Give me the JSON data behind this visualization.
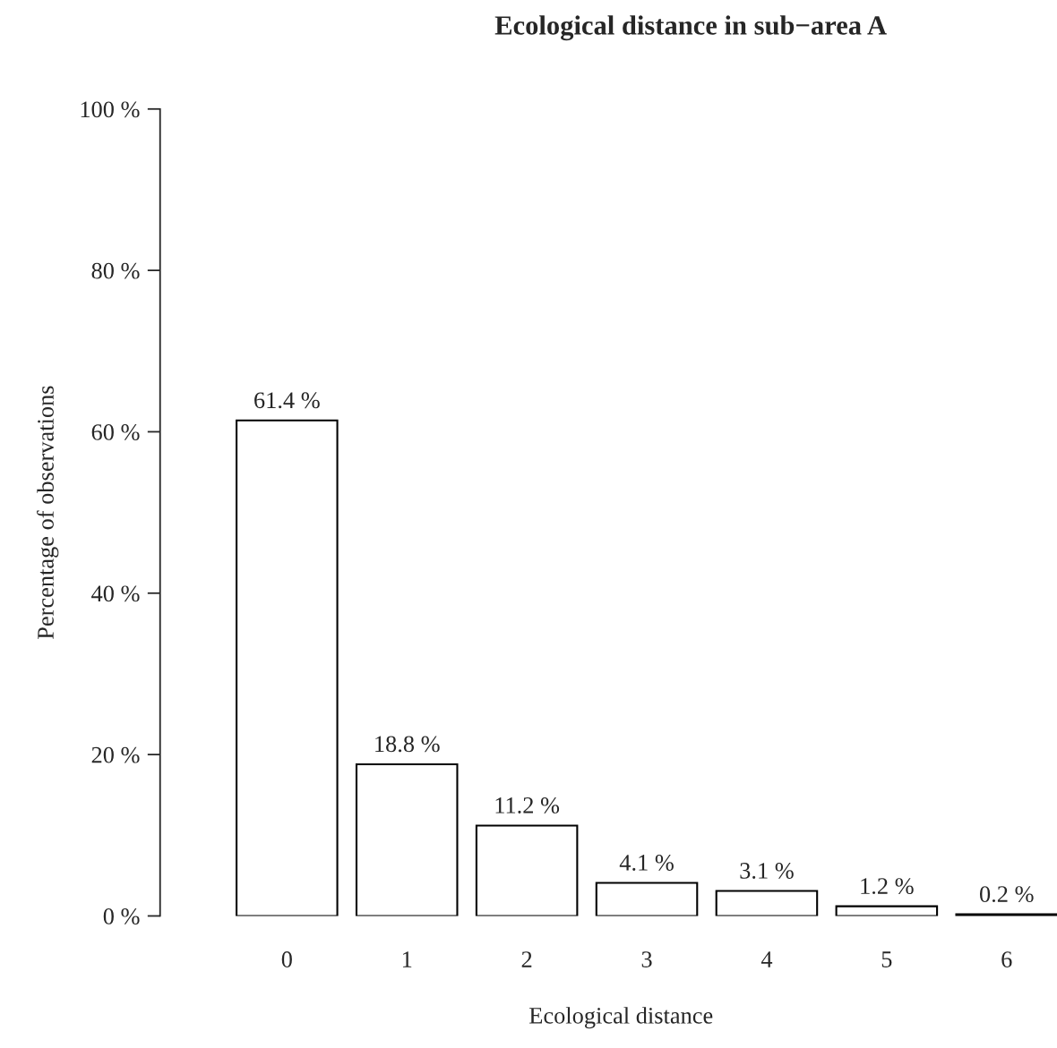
{
  "chart_data": {
    "type": "bar",
    "title": "Ecological distance in sub−area A",
    "xlabel": "Ecological distance",
    "ylabel": "Percentage of observations",
    "categories": [
      "0",
      "1",
      "2",
      "3",
      "4",
      "5",
      "6"
    ],
    "values": [
      61.4,
      18.8,
      11.2,
      4.1,
      3.1,
      1.2,
      0.2
    ],
    "value_labels": [
      "61.4 %",
      "18.8 %",
      "11.2 %",
      "4.1 %",
      "3.1 %",
      "1.2 %",
      "0.2 %"
    ],
    "color": "#ffffff",
    "ylim": [
      0,
      100
    ],
    "yticks": [
      {
        "value": 0,
        "label": "0 %"
      },
      {
        "value": 20,
        "label": "20 %"
      },
      {
        "value": 40,
        "label": "40 %"
      },
      {
        "value": 60,
        "label": "60 %"
      },
      {
        "value": 80,
        "label": "80 %"
      },
      {
        "value": 100,
        "label": "100 %"
      }
    ],
    "grid": false
  }
}
